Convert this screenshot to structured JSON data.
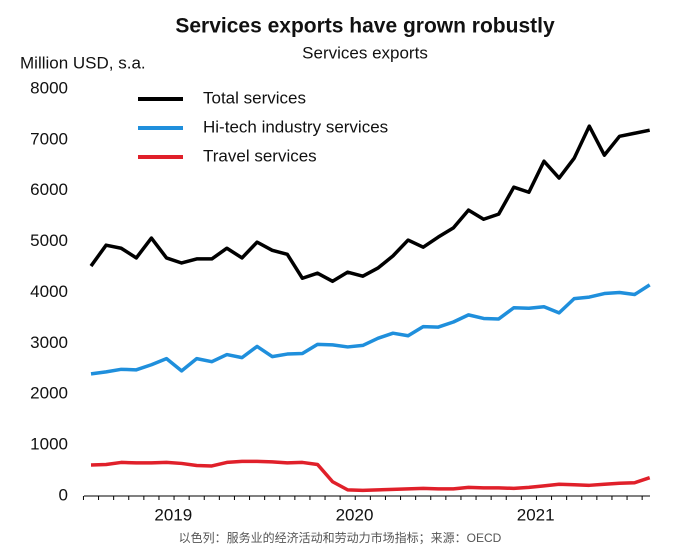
{
  "chart_data": {
    "type": "line",
    "title": "Services exports have grown robustly",
    "subtitle": "Services exports",
    "y_label": "Million USD, s.a.",
    "source": "以色列：服务业的经济活动和劳动力市场指标；来源：OECD",
    "categories": [
      null,
      null,
      null,
      null,
      null,
      "2019",
      null,
      null,
      null,
      null,
      null,
      null,
      null,
      null,
      null,
      null,
      null,
      "2020",
      null,
      null,
      null,
      null,
      null,
      null,
      null,
      null,
      null,
      null,
      null,
      "2021",
      null,
      null,
      null,
      null,
      null,
      null,
      null,
      null
    ],
    "ylim": [
      0,
      8000
    ],
    "yticks": [
      0,
      1000,
      2000,
      3000,
      4000,
      5000,
      6000,
      7000,
      8000
    ],
    "legend": "upper-left",
    "series": [
      {
        "name": "Total services",
        "color": "#000000",
        "values": [
          4520,
          4930,
          4870,
          4680,
          5070,
          4680,
          4580,
          4660,
          4660,
          4870,
          4680,
          4990,
          4830,
          4750,
          4280,
          4380,
          4220,
          4400,
          4320,
          4480,
          4720,
          5030,
          4890,
          5090,
          5270,
          5620,
          5440,
          5540,
          6070,
          5970,
          6580,
          6250,
          6640,
          7270,
          6700,
          7070,
          7130,
          7190
        ]
      },
      {
        "name": "Hi-tech industry services",
        "color": "#1f8fdc",
        "values": [
          2400,
          2440,
          2490,
          2480,
          2580,
          2700,
          2460,
          2700,
          2640,
          2780,
          2720,
          2940,
          2740,
          2790,
          2800,
          2980,
          2970,
          2930,
          2960,
          3100,
          3200,
          3150,
          3330,
          3320,
          3420,
          3560,
          3490,
          3480,
          3700,
          3690,
          3720,
          3600,
          3880,
          3910,
          3980,
          4000,
          3960,
          4150
        ]
      },
      {
        "name": "Travel services",
        "color": "#e0202a",
        "values": [
          610,
          620,
          660,
          650,
          650,
          660,
          640,
          600,
          590,
          660,
          680,
          680,
          670,
          650,
          660,
          620,
          280,
          120,
          110,
          120,
          130,
          140,
          150,
          140,
          140,
          170,
          160,
          160,
          150,
          170,
          200,
          230,
          220,
          210,
          230,
          250,
          260,
          360
        ]
      }
    ]
  }
}
